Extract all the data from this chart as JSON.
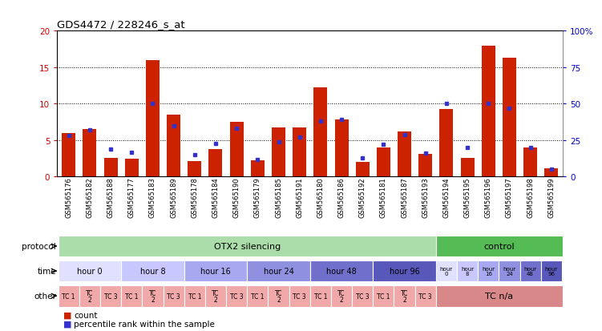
{
  "title": "GDS4472 / 228246_s_at",
  "samples": [
    "GSM565176",
    "GSM565182",
    "GSM565188",
    "GSM565177",
    "GSM565183",
    "GSM565189",
    "GSM565178",
    "GSM565184",
    "GSM565190",
    "GSM565179",
    "GSM565185",
    "GSM565191",
    "GSM565180",
    "GSM565186",
    "GSM565192",
    "GSM565181",
    "GSM565187",
    "GSM565193",
    "GSM565194",
    "GSM565195",
    "GSM565196",
    "GSM565197",
    "GSM565198",
    "GSM565199"
  ],
  "count_values": [
    6.0,
    6.5,
    2.6,
    2.5,
    16.0,
    8.5,
    2.1,
    3.8,
    7.5,
    2.3,
    6.8,
    6.8,
    12.2,
    7.8,
    2.0,
    4.0,
    6.2,
    3.1,
    9.3,
    2.6,
    18.0,
    16.3,
    4.0,
    1.2
  ],
  "percentile_values": [
    28,
    32,
    19,
    17,
    50,
    35,
    15,
    23,
    33,
    12,
    24,
    27,
    38,
    39,
    13,
    22,
    29,
    16,
    50,
    20,
    50,
    47,
    20,
    5
  ],
  "ylim_left": [
    0,
    20
  ],
  "ylim_right": [
    0,
    100
  ],
  "yticks_left": [
    0,
    5,
    10,
    15,
    20
  ],
  "yticks_right": [
    0,
    25,
    50,
    75,
    100
  ],
  "bar_color": "#cc2200",
  "dot_color": "#3333cc",
  "bg_color": "#ffffff",
  "protocol_otx2_color": "#aaddaa",
  "protocol_control_color": "#55bb55",
  "time_colors": [
    "#e0e0ff",
    "#c8c8ff",
    "#a8a8f0",
    "#9090e0",
    "#7070cc",
    "#5858bb"
  ],
  "time_labels": [
    "hour 0",
    "hour 8",
    "hour 16",
    "hour 24",
    "hour 48",
    "hour 96"
  ],
  "ctrl_time_labels": [
    "hour\n0",
    "hour\n8",
    "hour\n16",
    "hour\n24",
    "hour\n48",
    "hour\n96"
  ],
  "tc_color": "#f0a8a8",
  "tc_nva_color": "#d88888",
  "axis_color_left": "#cc0000",
  "axis_color_right": "#0000cc"
}
